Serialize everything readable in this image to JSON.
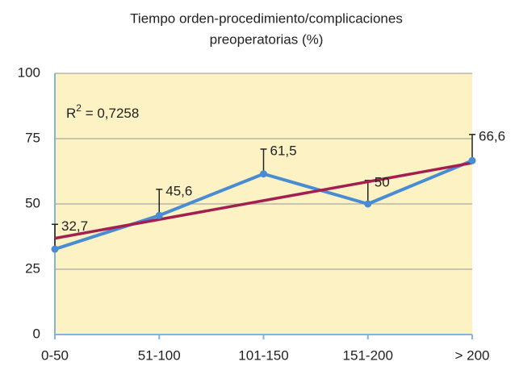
{
  "chart_data": {
    "type": "line",
    "title": [
      "Tiempo orden-procedimiento/complicaciones",
      "preoperatorias (%)"
    ],
    "categories": [
      "0-50",
      "51-100",
      "101-150",
      "151-200",
      "> 200"
    ],
    "series": [
      {
        "color": "#4a8cd4",
        "values": [
          32.7,
          45.6,
          61.5,
          50,
          66.6
        ],
        "value_labels": [
          "32,7",
          "45,6",
          "61,5",
          "50",
          "66,6"
        ],
        "errors": [
          9.5,
          10,
          9.5,
          9,
          10
        ]
      }
    ],
    "trendline": "linear",
    "trendline_color": "#a31f4f",
    "annotation": {
      "base": "R",
      "sup": "2",
      "rest": " = 0,7258"
    },
    "ylim": [
      0,
      100
    ],
    "yticks": [
      0,
      25,
      50,
      75,
      100
    ],
    "grid": true,
    "plot_background": "#fcf2c4"
  }
}
